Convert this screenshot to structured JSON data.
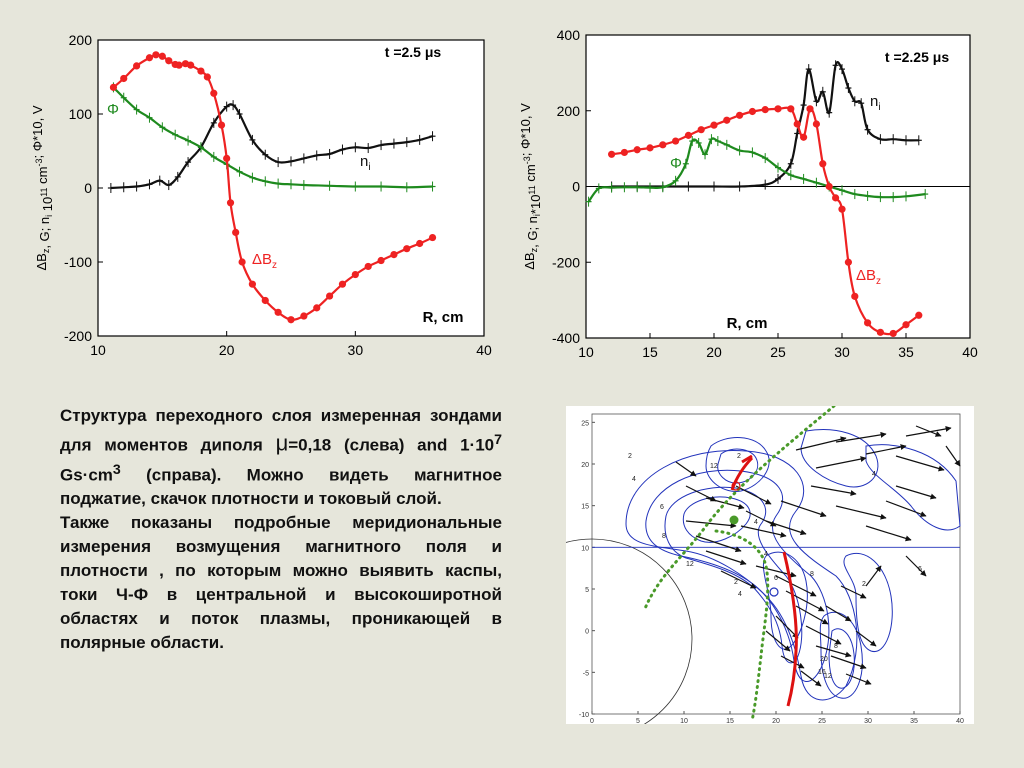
{
  "chart_data": [
    {
      "type": "line",
      "annotation": "t =2.5 μs",
      "xlabel": "R, cm",
      "ylabel": "ΔB<sub>z</sub>, G;  n<sub>i</sub> 10<sup>11</sup> cm<sup>-3</sup>; Φ*10, V",
      "xlim": [
        10,
        40
      ],
      "ylim": [
        -200,
        200
      ],
      "xticks": [
        10,
        20,
        30,
        40
      ],
      "yticks": [
        -200,
        -100,
        0,
        100,
        200
      ],
      "series": [
        {
          "name": "ΔB",
          "color": "#ee2222",
          "x": [
            11.2,
            12,
            13,
            14,
            14.5,
            15,
            15.5,
            16,
            16.3,
            16.8,
            17.2,
            18,
            18.5,
            19,
            19.6,
            20,
            20.3,
            20.7,
            21.2,
            22,
            23,
            24,
            25,
            26,
            27,
            28,
            29,
            30,
            31,
            32,
            33,
            34,
            35,
            36
          ],
          "y": [
            136,
            148,
            165,
            176,
            180,
            178,
            172,
            167,
            166,
            168,
            166,
            158,
            150,
            128,
            85,
            40,
            -20,
            -60,
            -100,
            -130,
            -152,
            -168,
            -178,
            -173,
            -162,
            -146,
            -130,
            -117,
            -106,
            -98,
            -90,
            -82,
            -75,
            -67
          ]
        },
        {
          "name": "Φ",
          "color": "#1e8a1e",
          "x": [
            11.2,
            12,
            13,
            14,
            15,
            16,
            17,
            18,
            19,
            20,
            21,
            22,
            23,
            24,
            25,
            26,
            28,
            30,
            32,
            34,
            36
          ],
          "y": [
            136,
            122,
            106,
            95,
            82,
            72,
            64,
            55,
            42,
            32,
            22,
            14,
            9,
            6,
            5,
            4,
            3,
            2,
            2,
            1,
            2
          ]
        },
        {
          "name": "n",
          "color": "#111111",
          "x": [
            11,
            12,
            13,
            14,
            14.8,
            15.5,
            16.2,
            17,
            18,
            19,
            20,
            20.5,
            21,
            22,
            23,
            24,
            25,
            26,
            27,
            28,
            29,
            30,
            31,
            32,
            33,
            34,
            35,
            36
          ],
          "y": [
            0,
            1,
            2,
            5,
            10,
            4,
            15,
            35,
            55,
            88,
            110,
            112,
            100,
            65,
            45,
            35,
            36,
            40,
            44,
            46,
            52,
            55,
            54,
            58,
            60,
            62,
            65,
            70
          ]
        }
      ],
      "series_labels": {
        "dB": "ΔB",
        "dB_sub": "z",
        "n": "n",
        "n_sub": "i",
        "phi": "Φ"
      }
    },
    {
      "type": "line",
      "annotation": "t =2.25 μs",
      "xlabel": "R, cm",
      "ylabel": "ΔB<sub>z</sub>, G;  n<sub>i</sub>*10<sup>11</sup> cm<sup>-3</sup>; Φ*10, V",
      "xlim": [
        10,
        40
      ],
      "ylim": [
        -400,
        400
      ],
      "xticks": [
        10,
        15,
        20,
        25,
        30,
        35,
        40
      ],
      "yticks": [
        -400,
        -200,
        0,
        200,
        400
      ],
      "series": [
        {
          "name": "ΔB",
          "color": "#ee2222",
          "x": [
            12,
            13,
            14,
            15,
            16,
            17,
            18,
            19,
            20,
            21,
            22,
            23,
            24,
            25,
            26,
            26.5,
            27,
            27.5,
            28,
            28.5,
            29,
            29.5,
            30,
            30.5,
            31,
            32,
            33,
            34,
            35,
            36
          ],
          "y": [
            85,
            90,
            97,
            102,
            110,
            120,
            135,
            150,
            162,
            175,
            188,
            198,
            203,
            205,
            205,
            165,
            130,
            205,
            165,
            60,
            0,
            -30,
            -60,
            -200,
            -290,
            -360,
            -385,
            -388,
            -365,
            -340
          ]
        },
        {
          "name": "Φ",
          "color": "#1e8a1e",
          "x": [
            10.2,
            11,
            12,
            13,
            14,
            15,
            16,
            17,
            17.8,
            18.3,
            18.8,
            19.3,
            19.8,
            20.3,
            21,
            22,
            23,
            24,
            25,
            26,
            27,
            28,
            29,
            30,
            31,
            32,
            33,
            34,
            35,
            36.5
          ],
          "y": [
            -40,
            -5,
            -3,
            -2,
            -2,
            -3,
            -2,
            15,
            60,
            120,
            115,
            85,
            125,
            120,
            110,
            95,
            90,
            75,
            50,
            30,
            20,
            10,
            0,
            -10,
            -20,
            -25,
            -28,
            -28,
            -26,
            -20
          ]
        },
        {
          "name": "n",
          "color": "#111111",
          "x": [
            12,
            14,
            16,
            18,
            20,
            22,
            24,
            25,
            26,
            26.5,
            27,
            27.4,
            28,
            28.5,
            29,
            29.5,
            30,
            30.5,
            31,
            31.5,
            32,
            33,
            34,
            35,
            36
          ],
          "y": [
            0,
            0,
            0,
            0,
            0,
            0,
            5,
            20,
            60,
            140,
            215,
            310,
            225,
            250,
            195,
            320,
            310,
            260,
            225,
            220,
            150,
            125,
            125,
            122,
            122
          ]
        }
      ],
      "series_labels": {
        "dB": "ΔB",
        "dB_sub": "z",
        "n": "n",
        "n_sub": "i",
        "phi": "Φ"
      }
    }
  ],
  "caption": {
    "p1": "Структура переходного слоя измеренная зондами для моментов диполя <span style=\"font-size:22px;font-weight:normal;\">μ</span>=0,18 (слева) and 1·10<sup>7</sup> Gs·cm<sup>3</sup> (справа). Можно видеть магнитное поджатие, скачок плотности и токовый слой.",
    "p2": "Также показаны подробные меридиональные измерения возмущения магнитного поля и плотности , по которым можно выявить каспы, токи Ч-Ф в центральной и высокоширотной областях и поток плазмы, проникающей в полярные области."
  },
  "map": {
    "xticks": [
      0,
      5,
      10,
      15,
      20,
      25,
      30,
      35,
      40
    ],
    "yticks": [
      -10,
      -5,
      0,
      5,
      10,
      15,
      20,
      25
    ],
    "xlim": [
      0,
      40
    ],
    "ylim": [
      -10,
      26
    ],
    "contour_labels": [
      "2",
      "4",
      "6",
      "8",
      "12",
      "2",
      "4",
      "12",
      "4",
      "2",
      "4",
      "6",
      "8",
      "16",
      "20",
      "12",
      "8",
      "2",
      "6",
      "4"
    ],
    "colors": {
      "contour": "#2233bb",
      "arrow": "#111111",
      "dots": "#4a9a2a",
      "current": "#dd1111"
    }
  }
}
